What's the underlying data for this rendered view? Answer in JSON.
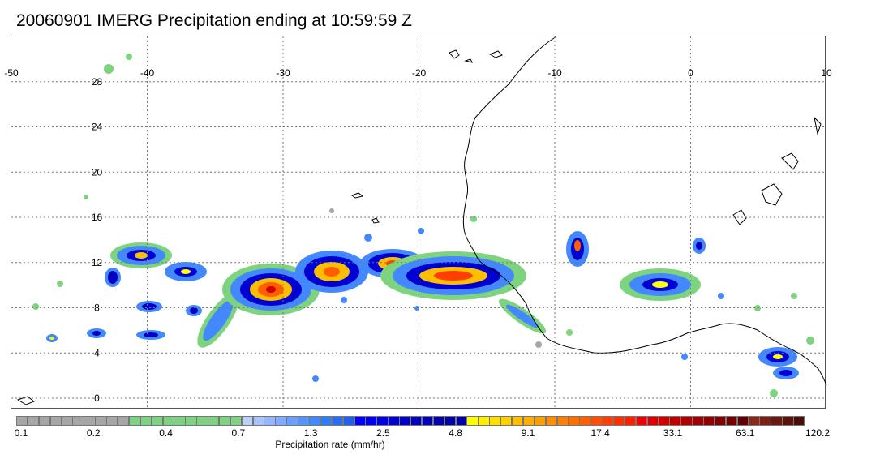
{
  "title": "20060901 IMERG Precipitation ending at 10:59:59 Z",
  "map": {
    "lon_range": [
      -50,
      10
    ],
    "lat_range": [
      -1,
      32
    ],
    "lon_ticks": [
      "-50",
      "-40",
      "-30",
      "-20",
      "-10",
      "0",
      "10"
    ],
    "lat_ticks": [
      "28",
      "24",
      "20",
      "16",
      "12",
      "8",
      "4",
      "0"
    ],
    "grid": "dotted",
    "coastline_color": "#000000"
  },
  "colorbar": {
    "title": "Precipitation rate (mm/hr)",
    "labels": [
      "0.1",
      "0.2",
      "0.4",
      "0.7",
      "1.3",
      "2.5",
      "4.8",
      "9.1",
      "17.4",
      "33.1",
      "63.1",
      "120.2"
    ],
    "colors": [
      "#a6a6a6",
      "#a6a6a6",
      "#a6a6a6",
      "#a6a6a6",
      "#a6a6a6",
      "#a6a6a6",
      "#a6a6a6",
      "#a6a6a6",
      "#a6a6a6",
      "#a6a6a6",
      "#7ed37e",
      "#7ed37e",
      "#7ed37e",
      "#7ed37e",
      "#7ed37e",
      "#7ed37e",
      "#7ed37e",
      "#7ed37e",
      "#7ed37e",
      "#7ed37e",
      "#bcd0ff",
      "#a8c4ff",
      "#94b8ff",
      "#80acff",
      "#6ca0ff",
      "#5894ff",
      "#4488ff",
      "#307cff",
      "#2a6cf4",
      "#2060f0",
      "#0000ff",
      "#0000f0",
      "#0000e0",
      "#0000d0",
      "#0000c8",
      "#0000c0",
      "#0000b8",
      "#0000b0",
      "#0000a8",
      "#0000a0",
      "#ffff00",
      "#ffef00",
      "#ffdf00",
      "#ffcf00",
      "#ffbf00",
      "#ffaf00",
      "#ff9f00",
      "#ff8f00",
      "#ff7f00",
      "#ff6f00",
      "#ff5f00",
      "#ff4f00",
      "#ff3f00",
      "#ff2f00",
      "#ff1f00",
      "#f00000",
      "#e00000",
      "#d00000",
      "#c00000",
      "#b00000",
      "#a00000",
      "#900000",
      "#800000",
      "#700000",
      "#600000",
      "#8a2a1a",
      "#7a2215",
      "#6a1a10",
      "#5a140c",
      "#4a0e08"
    ]
  }
}
